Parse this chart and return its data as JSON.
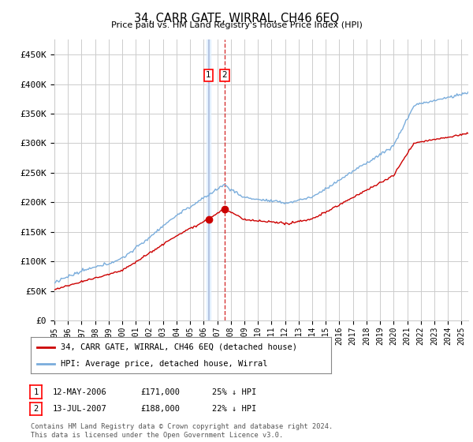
{
  "title": "34, CARR GATE, WIRRAL, CH46 6EQ",
  "subtitle": "Price paid vs. HM Land Registry's House Price Index (HPI)",
  "ylabel_ticks": [
    "£0",
    "£50K",
    "£100K",
    "£150K",
    "£200K",
    "£250K",
    "£300K",
    "£350K",
    "£400K",
    "£450K"
  ],
  "ytick_values": [
    0,
    50000,
    100000,
    150000,
    200000,
    250000,
    300000,
    350000,
    400000,
    450000
  ],
  "ylim": [
    0,
    475000
  ],
  "xlim_start": 1995.0,
  "xlim_end": 2025.5,
  "sale1_x": 2006.36,
  "sale1_y": 171000,
  "sale2_x": 2007.53,
  "sale2_y": 188000,
  "red_line_color": "#cc0000",
  "blue_line_color": "#7aaddc",
  "grid_color": "#cccccc",
  "background_color": "#ffffff",
  "legend_label_red": "34, CARR GATE, WIRRAL, CH46 6EQ (detached house)",
  "legend_label_blue": "HPI: Average price, detached house, Wirral",
  "footer": "Contains HM Land Registry data © Crown copyright and database right 2024.\nThis data is licensed under the Open Government Licence v3.0.",
  "xtick_years": [
    "1995",
    "1996",
    "1997",
    "1998",
    "1999",
    "2000",
    "2001",
    "2002",
    "2003",
    "2004",
    "2005",
    "2006",
    "2007",
    "2008",
    "2009",
    "2010",
    "2011",
    "2012",
    "2013",
    "2014",
    "2015",
    "2016",
    "2017",
    "2018",
    "2019",
    "2020",
    "2021",
    "2022",
    "2023",
    "2024",
    "2025"
  ],
  "sale1_date": "12-MAY-2006",
  "sale1_price": "£171,000",
  "sale1_hpi": "25% ↓ HPI",
  "sale2_date": "13-JUL-2007",
  "sale2_price": "£188,000",
  "sale2_hpi": "22% ↓ HPI"
}
